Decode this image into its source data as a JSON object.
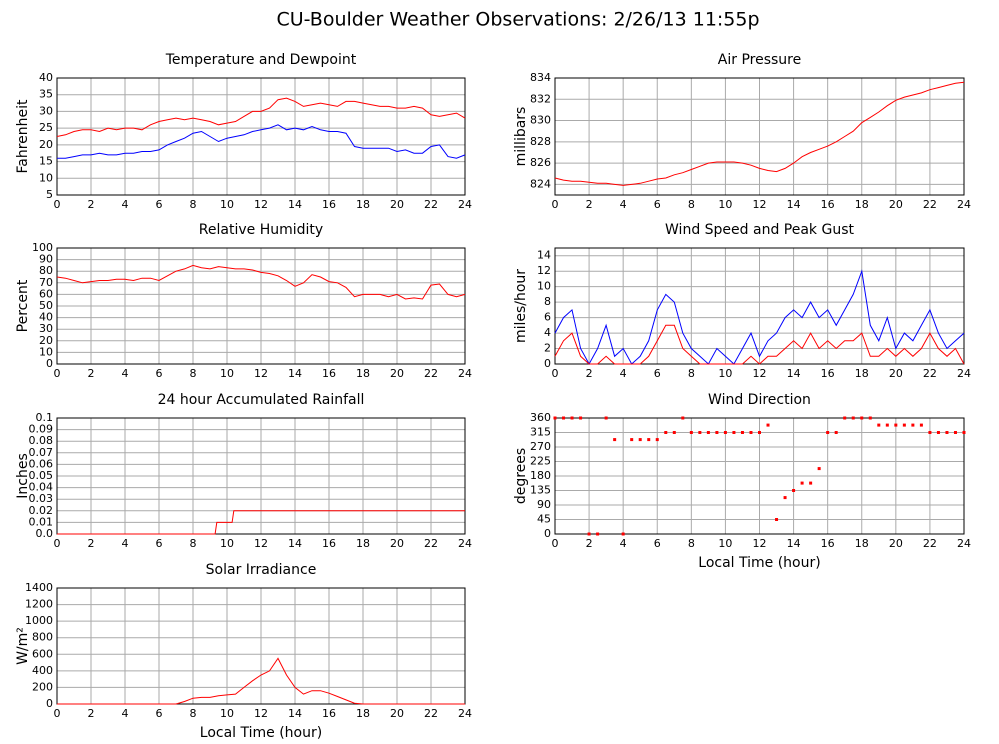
{
  "title": "CU-Boulder Weather Observations: 2/26/13 11:55p",
  "chart_data": [
    {
      "type": "line",
      "title": "Temperature and Dewpoint",
      "ylabel": "Fahrenheit",
      "x": [
        0,
        0.5,
        1,
        1.5,
        2,
        2.5,
        3,
        3.5,
        4,
        4.5,
        5,
        5.5,
        6,
        6.5,
        7,
        7.5,
        8,
        8.5,
        9,
        9.5,
        10,
        10.5,
        11,
        11.5,
        12,
        12.5,
        13,
        13.5,
        14,
        14.5,
        15,
        15.5,
        16,
        16.5,
        17,
        17.5,
        18,
        18.5,
        19,
        19.5,
        20,
        20.5,
        21,
        21.5,
        22,
        22.5,
        23,
        23.5,
        24
      ],
      "series": [
        {
          "color": "#ff0000",
          "values": [
            22.5,
            23,
            24,
            24.5,
            24.5,
            24,
            25,
            24.5,
            25,
            25,
            24.5,
            26,
            27,
            27.5,
            28,
            27.5,
            28,
            27.5,
            27,
            26,
            26.5,
            27,
            28.5,
            30,
            30,
            31,
            33.5,
            34,
            33,
            31.5,
            32,
            32.5,
            32,
            31.5,
            33,
            33,
            32.5,
            32,
            31.5,
            31.5,
            31,
            31,
            31.5,
            31,
            29,
            28.5,
            29,
            29.5,
            28
          ]
        },
        {
          "color": "#0000ff",
          "values": [
            16,
            16,
            16.5,
            17,
            17,
            17.5,
            17,
            17,
            17.5,
            17.5,
            18,
            18,
            18.5,
            20,
            21,
            22,
            23.5,
            24,
            22.5,
            21,
            22,
            22.5,
            23,
            24,
            24.5,
            25,
            26,
            24.5,
            25,
            24.5,
            25.5,
            24.5,
            24,
            24,
            23.5,
            19.5,
            19,
            19,
            19,
            19,
            18,
            18.5,
            17.5,
            17.5,
            19.5,
            20,
            16.5,
            16,
            17
          ]
        }
      ],
      "xlim": [
        0,
        24
      ],
      "xticks": [
        0,
        2,
        4,
        6,
        8,
        10,
        12,
        14,
        16,
        18,
        20,
        22,
        24
      ],
      "ylim": [
        5,
        40
      ],
      "yticks": [
        5,
        10,
        15,
        20,
        25,
        30,
        35,
        40
      ],
      "grid": true
    },
    {
      "type": "line",
      "title": "Air Pressure",
      "ylabel": "millibars",
      "x": [
        0,
        0.5,
        1,
        1.5,
        2,
        2.5,
        3,
        3.5,
        4,
        4.5,
        5,
        5.5,
        6,
        6.5,
        7,
        7.5,
        8,
        8.5,
        9,
        9.5,
        10,
        10.5,
        11,
        11.5,
        12,
        12.5,
        13,
        13.5,
        14,
        14.5,
        15,
        15.5,
        16,
        16.5,
        17,
        17.5,
        18,
        18.5,
        19,
        19.5,
        20,
        20.5,
        21,
        21.5,
        22,
        22.5,
        23,
        23.5,
        24
      ],
      "series": [
        {
          "color": "#ff0000",
          "values": [
            824.6,
            824.4,
            824.3,
            824.3,
            824.2,
            824.1,
            824.1,
            824.0,
            823.9,
            824.0,
            824.1,
            824.3,
            824.5,
            824.6,
            824.9,
            825.1,
            825.4,
            825.7,
            826.0,
            826.1,
            826.1,
            826.1,
            826.0,
            825.8,
            825.5,
            825.3,
            825.2,
            825.5,
            826.0,
            826.6,
            827.0,
            827.3,
            827.6,
            828.0,
            828.5,
            829.0,
            829.8,
            830.3,
            830.8,
            831.4,
            831.9,
            832.2,
            832.4,
            832.6,
            832.9,
            833.1,
            833.3,
            833.5,
            833.6
          ]
        }
      ],
      "xlim": [
        0,
        24
      ],
      "xticks": [
        0,
        2,
        4,
        6,
        8,
        10,
        12,
        14,
        16,
        18,
        20,
        22,
        24
      ],
      "ylim": [
        823,
        834
      ],
      "yticks": [
        824,
        826,
        828,
        830,
        832,
        834
      ],
      "grid": true
    },
    {
      "type": "line",
      "title": "Relative Humidity",
      "ylabel": "Percent",
      "x": [
        0,
        0.5,
        1,
        1.5,
        2,
        2.5,
        3,
        3.5,
        4,
        4.5,
        5,
        5.5,
        6,
        6.5,
        7,
        7.5,
        8,
        8.5,
        9,
        9.5,
        10,
        10.5,
        11,
        11.5,
        12,
        12.5,
        13,
        13.5,
        14,
        14.5,
        15,
        15.5,
        16,
        16.5,
        17,
        17.5,
        18,
        18.5,
        19,
        19.5,
        20,
        20.5,
        21,
        21.5,
        22,
        22.5,
        23,
        23.5,
        24
      ],
      "series": [
        {
          "color": "#ff0000",
          "values": [
            75,
            74,
            72,
            70,
            71,
            72,
            72,
            73,
            73,
            72,
            74,
            74,
            72,
            76,
            80,
            82,
            85,
            83,
            82,
            84,
            83,
            82,
            82,
            81,
            79,
            78,
            76,
            72,
            67,
            70,
            77,
            75,
            71,
            70,
            66,
            58,
            60,
            60,
            60,
            58,
            60,
            56,
            57,
            56,
            68,
            69,
            60,
            58,
            60
          ]
        }
      ],
      "xlim": [
        0,
        24
      ],
      "xticks": [
        0,
        2,
        4,
        6,
        8,
        10,
        12,
        14,
        16,
        18,
        20,
        22,
        24
      ],
      "ylim": [
        0,
        100
      ],
      "yticks": [
        0,
        10,
        20,
        30,
        40,
        50,
        60,
        70,
        80,
        90,
        100
      ],
      "grid": true
    },
    {
      "type": "line",
      "title": "Wind Speed and Peak Gust",
      "ylabel": "miles/hour",
      "x": [
        0,
        0.5,
        1,
        1.5,
        2,
        2.5,
        3,
        3.5,
        4,
        4.5,
        5,
        5.5,
        6,
        6.5,
        7,
        7.5,
        8,
        8.5,
        9,
        9.5,
        10,
        10.5,
        11,
        11.5,
        12,
        12.5,
        13,
        13.5,
        14,
        14.5,
        15,
        15.5,
        16,
        16.5,
        17,
        17.5,
        18,
        18.5,
        19,
        19.5,
        20,
        20.5,
        21,
        21.5,
        22,
        22.5,
        23,
        23.5,
        24
      ],
      "series": [
        {
          "color": "#0000ff",
          "values": [
            4,
            6,
            7,
            2,
            0,
            2,
            5,
            1,
            2,
            0,
            1,
            3,
            7,
            9,
            8,
            4,
            2,
            1,
            0,
            2,
            1,
            0,
            2,
            4,
            1,
            3,
            4,
            6,
            7,
            6,
            8,
            6,
            7,
            5,
            7,
            9,
            12,
            5,
            3,
            6,
            2,
            4,
            3,
            5,
            7,
            4,
            2,
            3,
            4
          ]
        },
        {
          "color": "#ff0000",
          "values": [
            1,
            3,
            4,
            1,
            0,
            0,
            1,
            0,
            0,
            0,
            0,
            1,
            3,
            5,
            5,
            2,
            1,
            0,
            0,
            0,
            0,
            0,
            0,
            1,
            0,
            1,
            1,
            2,
            3,
            2,
            4,
            2,
            3,
            2,
            3,
            3,
            4,
            1,
            1,
            2,
            1,
            2,
            1,
            2,
            4,
            2,
            1,
            2,
            0
          ]
        }
      ],
      "xlim": [
        0,
        24
      ],
      "xticks": [
        0,
        2,
        4,
        6,
        8,
        10,
        12,
        14,
        16,
        18,
        20,
        22,
        24
      ],
      "ylim": [
        0,
        15
      ],
      "yticks": [
        0,
        2,
        4,
        6,
        8,
        10,
        12,
        14
      ],
      "grid": true
    },
    {
      "type": "line",
      "title": "24 hour Accumulated Rainfall",
      "ylabel": "Inches",
      "x": [
        0,
        9.3,
        9.4,
        10.3,
        10.4,
        24
      ],
      "series": [
        {
          "color": "#ff0000",
          "values": [
            0,
            0,
            0.01,
            0.01,
            0.02,
            0.02
          ]
        }
      ],
      "xlim": [
        0,
        24
      ],
      "xticks": [
        0,
        2,
        4,
        6,
        8,
        10,
        12,
        14,
        16,
        18,
        20,
        22,
        24
      ],
      "ylim": [
        0,
        0.1
      ],
      "yticks": [
        {
          "value": 0,
          "label": "0.0"
        },
        0.01,
        0.02,
        0.03,
        0.04,
        0.05,
        0.06,
        0.07,
        0.08,
        0.09,
        0.1
      ],
      "grid": true
    },
    {
      "type": "scatter",
      "title": "Wind Direction",
      "ylabel": "degrees",
      "xlabel": "Local Time (hour)",
      "x": [
        0,
        0.5,
        1,
        1.5,
        2,
        2.5,
        3,
        3.5,
        4,
        4.5,
        5,
        5.5,
        6,
        6.5,
        7,
        7.5,
        8,
        8.5,
        9,
        9.5,
        10,
        10.5,
        11,
        11.5,
        12,
        12.5,
        13,
        13.5,
        14,
        14.5,
        15,
        15.5,
        16,
        16.5,
        17,
        17.5,
        18,
        18.5,
        19,
        19.5,
        20,
        20.5,
        21,
        21.5,
        22,
        22.5,
        23,
        23.5,
        24
      ],
      "series": [
        {
          "color": "#ff0000",
          "values": [
            360,
            360,
            360,
            360,
            0,
            0,
            360,
            293,
            0,
            293,
            293,
            293,
            293,
            315,
            315,
            360,
            315,
            315,
            315,
            315,
            315,
            315,
            315,
            315,
            315,
            338,
            45,
            113,
            135,
            158,
            158,
            203,
            315,
            315,
            360,
            360,
            360,
            360,
            338,
            338,
            338,
            338,
            338,
            338,
            315,
            315,
            315,
            315,
            315
          ]
        }
      ],
      "xlim": [
        0,
        24
      ],
      "xticks": [
        0,
        2,
        4,
        6,
        8,
        10,
        12,
        14,
        16,
        18,
        20,
        22,
        24
      ],
      "ylim": [
        0,
        360
      ],
      "yticks": [
        0,
        45,
        90,
        135,
        180,
        225,
        270,
        315,
        360
      ],
      "grid": true
    },
    {
      "type": "line",
      "title": "Solar Irradiance",
      "ylabel": "W/m²",
      "xlabel": "Local Time (hour)",
      "x": [
        0,
        0.5,
        1,
        1.5,
        2,
        2.5,
        3,
        3.5,
        4,
        4.5,
        5,
        5.5,
        6,
        6.5,
        7,
        7.5,
        8,
        8.5,
        9,
        9.5,
        10,
        10.5,
        11,
        11.5,
        12,
        12.5,
        13,
        13.5,
        14,
        14.5,
        15,
        15.5,
        16,
        16.5,
        17,
        17.5,
        18,
        18.5,
        19,
        19.5,
        20,
        20.5,
        21,
        21.5,
        22,
        22.5,
        23,
        23.5,
        24
      ],
      "series": [
        {
          "color": "#ff0000",
          "values": [
            0,
            0,
            0,
            0,
            0,
            0,
            0,
            0,
            0,
            0,
            0,
            0,
            0,
            0,
            0,
            30,
            70,
            80,
            80,
            100,
            110,
            120,
            200,
            280,
            350,
            400,
            550,
            350,
            200,
            120,
            160,
            160,
            130,
            90,
            50,
            10,
            0,
            0,
            0,
            0,
            0,
            0,
            0,
            0,
            0,
            0,
            0,
            0,
            0
          ]
        }
      ],
      "xlim": [
        0,
        24
      ],
      "xticks": [
        0,
        2,
        4,
        6,
        8,
        10,
        12,
        14,
        16,
        18,
        20,
        22,
        24
      ],
      "ylim": [
        0,
        1400
      ],
      "yticks": [
        0,
        200,
        400,
        600,
        800,
        1000,
        1200,
        1400
      ],
      "grid": true
    }
  ]
}
